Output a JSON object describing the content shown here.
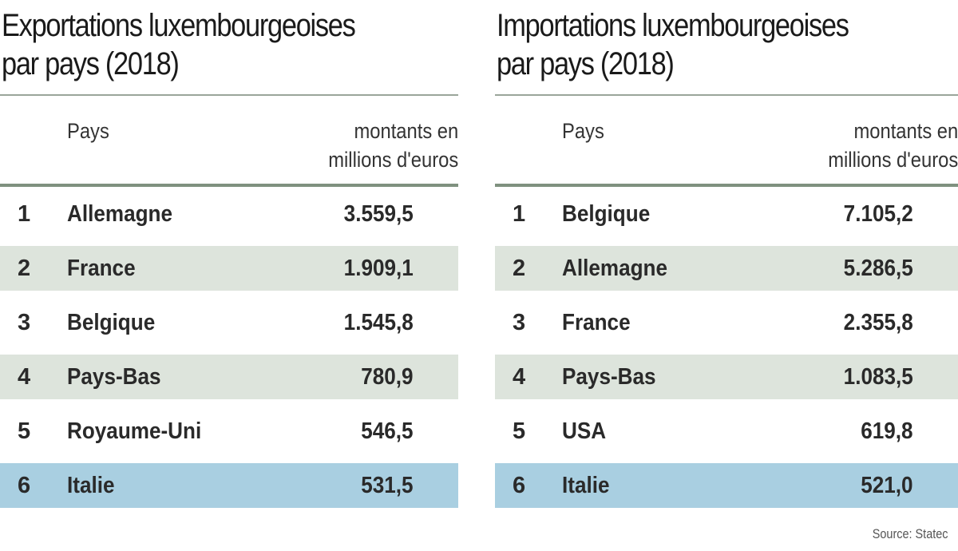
{
  "chart_data": [
    {
      "type": "table",
      "title_line1": "Exportations luxembourgeoises",
      "title_line2": "par pays (2018)",
      "col_country": "Pays",
      "col_amount_line1": "montants en",
      "col_amount_line2": "millions d'euros",
      "rows": [
        {
          "rank": "1",
          "country": "Allemagne",
          "value": "3.559,5",
          "numeric": 3559.5,
          "shade": "none"
        },
        {
          "rank": "2",
          "country": "France",
          "value": "1.909,1",
          "numeric": 1909.1,
          "shade": "green"
        },
        {
          "rank": "3",
          "country": "Belgique",
          "value": "1.545,8",
          "numeric": 1545.8,
          "shade": "none"
        },
        {
          "rank": "4",
          "country": "Pays-Bas",
          "value": "780,9",
          "numeric": 780.9,
          "shade": "green"
        },
        {
          "rank": "5",
          "country": "Royaume-Uni",
          "value": "546,5",
          "numeric": 546.5,
          "shade": "none"
        },
        {
          "rank": "6",
          "country": "Italie",
          "value": "531,5",
          "numeric": 531.5,
          "shade": "blue"
        }
      ]
    },
    {
      "type": "table",
      "title_line1": "Importations luxembourgeoises",
      "title_line2": "par pays (2018)",
      "col_country": "Pays",
      "col_amount_line1": "montants en",
      "col_amount_line2": "millions d'euros",
      "rows": [
        {
          "rank": "1",
          "country": "Belgique",
          "value": "7.105,2",
          "numeric": 7105.2,
          "shade": "none"
        },
        {
          "rank": "2",
          "country": "Allemagne",
          "value": "5.286,5",
          "numeric": 5286.5,
          "shade": "green"
        },
        {
          "rank": "3",
          "country": "France",
          "value": "2.355,8",
          "numeric": 2355.8,
          "shade": "none"
        },
        {
          "rank": "4",
          "country": "Pays-Bas",
          "value": "1.083,5",
          "numeric": 1083.5,
          "shade": "green"
        },
        {
          "rank": "5",
          "country": "USA",
          "value": "619,8",
          "numeric": 619.8,
          "shade": "none"
        },
        {
          "rank": "6",
          "country": "Italie",
          "value": "521,0",
          "numeric": 521.0,
          "shade": "blue"
        }
      ]
    }
  ],
  "colors": {
    "row_green": "#dde4dc",
    "row_blue": "#a9cfe1",
    "rule": "#7f917f"
  },
  "source": "Source: Statec"
}
